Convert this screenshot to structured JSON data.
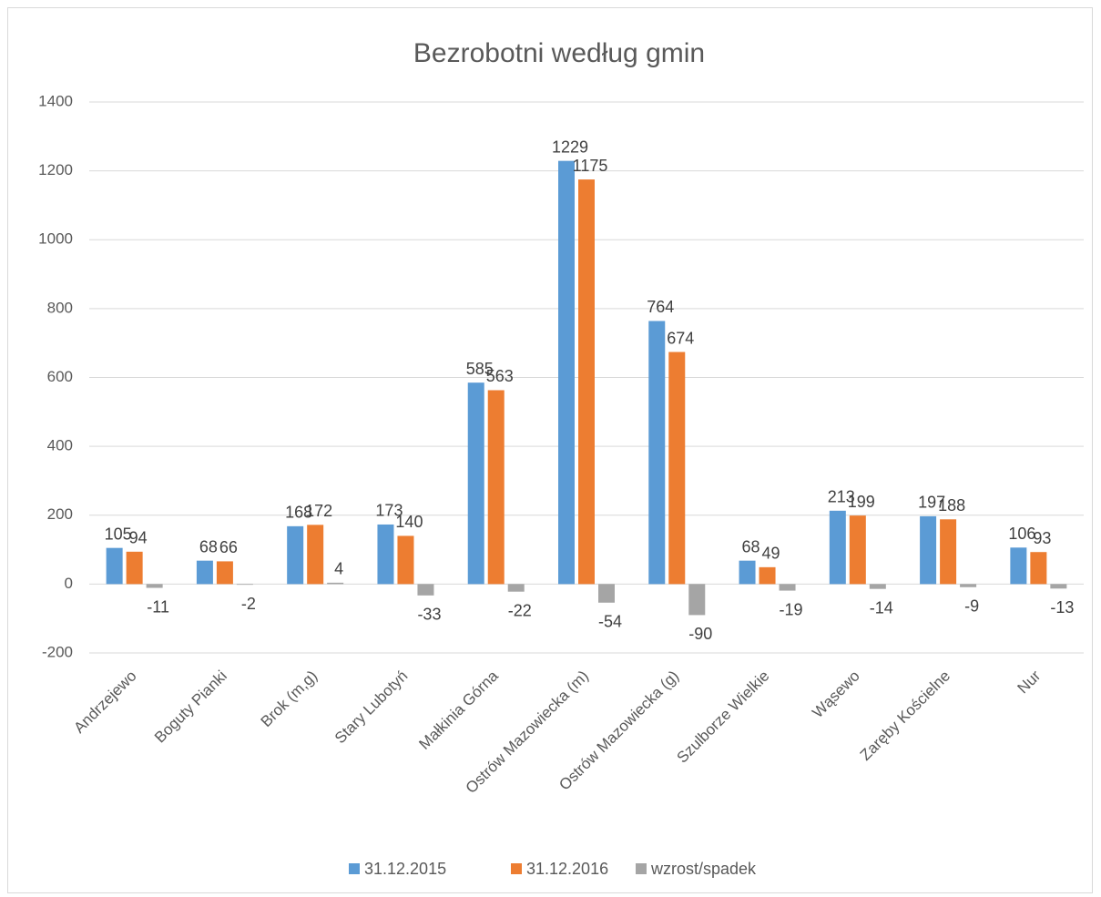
{
  "chart_data": {
    "type": "bar",
    "title": "Bezrobotni według gmin",
    "categories": [
      "Andrzejewo",
      "Boguty Pianki",
      "Brok (m,g)",
      "Stary Lubotyń",
      "Małkinia Górna",
      "Ostrów Mazowiecka (m)",
      "Ostrów Mazowiecka (g)",
      "Szulborze Wielkie",
      "Wąsewo",
      "Zaręby Kościelne",
      "Nur"
    ],
    "series": [
      {
        "name": "31.12.2015",
        "color": "#5b9bd5",
        "values": [
          105,
          68,
          168,
          173,
          585,
          1229,
          764,
          68,
          213,
          197,
          106
        ]
      },
      {
        "name": "31.12.2016",
        "color": "#ed7d31",
        "values": [
          94,
          66,
          172,
          140,
          563,
          1175,
          674,
          49,
          199,
          188,
          93
        ]
      },
      {
        "name": "wzrost/spadek",
        "color": "#a5a5a5",
        "values": [
          -11,
          -2,
          4,
          -33,
          -22,
          -54,
          -90,
          -19,
          -14,
          -9,
          -13
        ]
      }
    ],
    "ylim": [
      -200,
      1400
    ],
    "yticks": [
      -200,
      0,
      200,
      400,
      600,
      800,
      1000,
      1200,
      1400
    ],
    "grid": true,
    "legend": "bottom"
  }
}
